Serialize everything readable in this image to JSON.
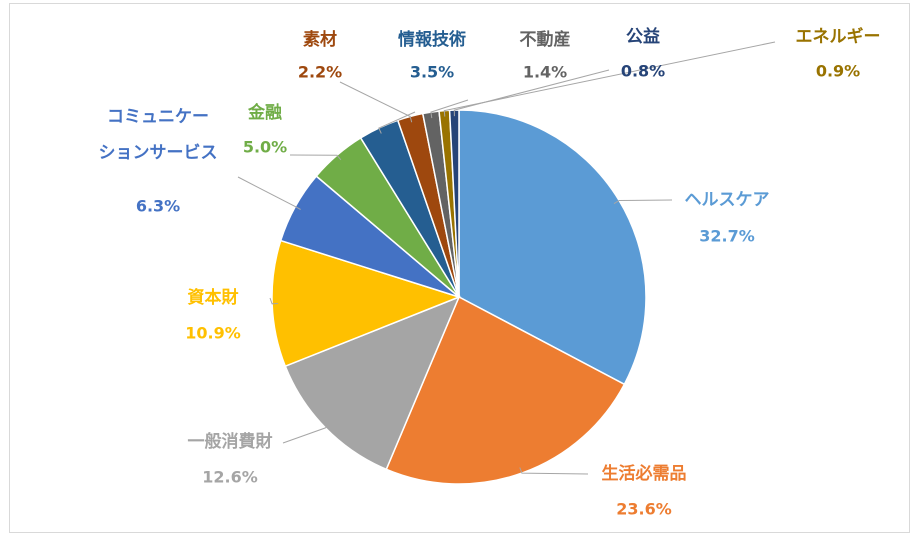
{
  "chart_data": {
    "type": "pie",
    "title": "",
    "slices": [
      {
        "label": "ヘルスケア",
        "value": 32.7,
        "value_label": "32.7%",
        "color": "#5B9BD5"
      },
      {
        "label": "生活必需品",
        "value": 23.6,
        "value_label": "23.6%",
        "color": "#ED7D31"
      },
      {
        "label": "一般消費財",
        "value": 12.6,
        "value_label": "12.6%",
        "color": "#A5A5A5"
      },
      {
        "label": "資本財",
        "value": 10.9,
        "value_label": "10.9%",
        "color": "#FFC000"
      },
      {
        "label": "コミュニケーションサービス",
        "label_lines": [
          "コミュニケー",
          "ションサービス"
        ],
        "value": 6.3,
        "value_label": "6.3%",
        "color": "#4472C4"
      },
      {
        "label": "金融",
        "value": 5.0,
        "value_label": "5.0%",
        "color": "#70AD47"
      },
      {
        "label": "情報技術",
        "value": 3.5,
        "value_label": "3.5%",
        "color": "#255E91"
      },
      {
        "label": "素材",
        "value": 2.2,
        "value_label": "2.2%",
        "color": "#9E480E"
      },
      {
        "label": "不動産",
        "value": 1.4,
        "value_label": "1.4%",
        "color": "#636363"
      },
      {
        "label": "エネルギー",
        "value": 0.9,
        "value_label": "0.9%",
        "color": "#997300"
      },
      {
        "label": "公益",
        "value": 0.8,
        "value_label": "0.8%",
        "color": "#264478"
      }
    ],
    "start_position": "top",
    "direction": "clockwise",
    "legend": "none",
    "data_labels": "category name and percentage, outside with leader lines"
  }
}
